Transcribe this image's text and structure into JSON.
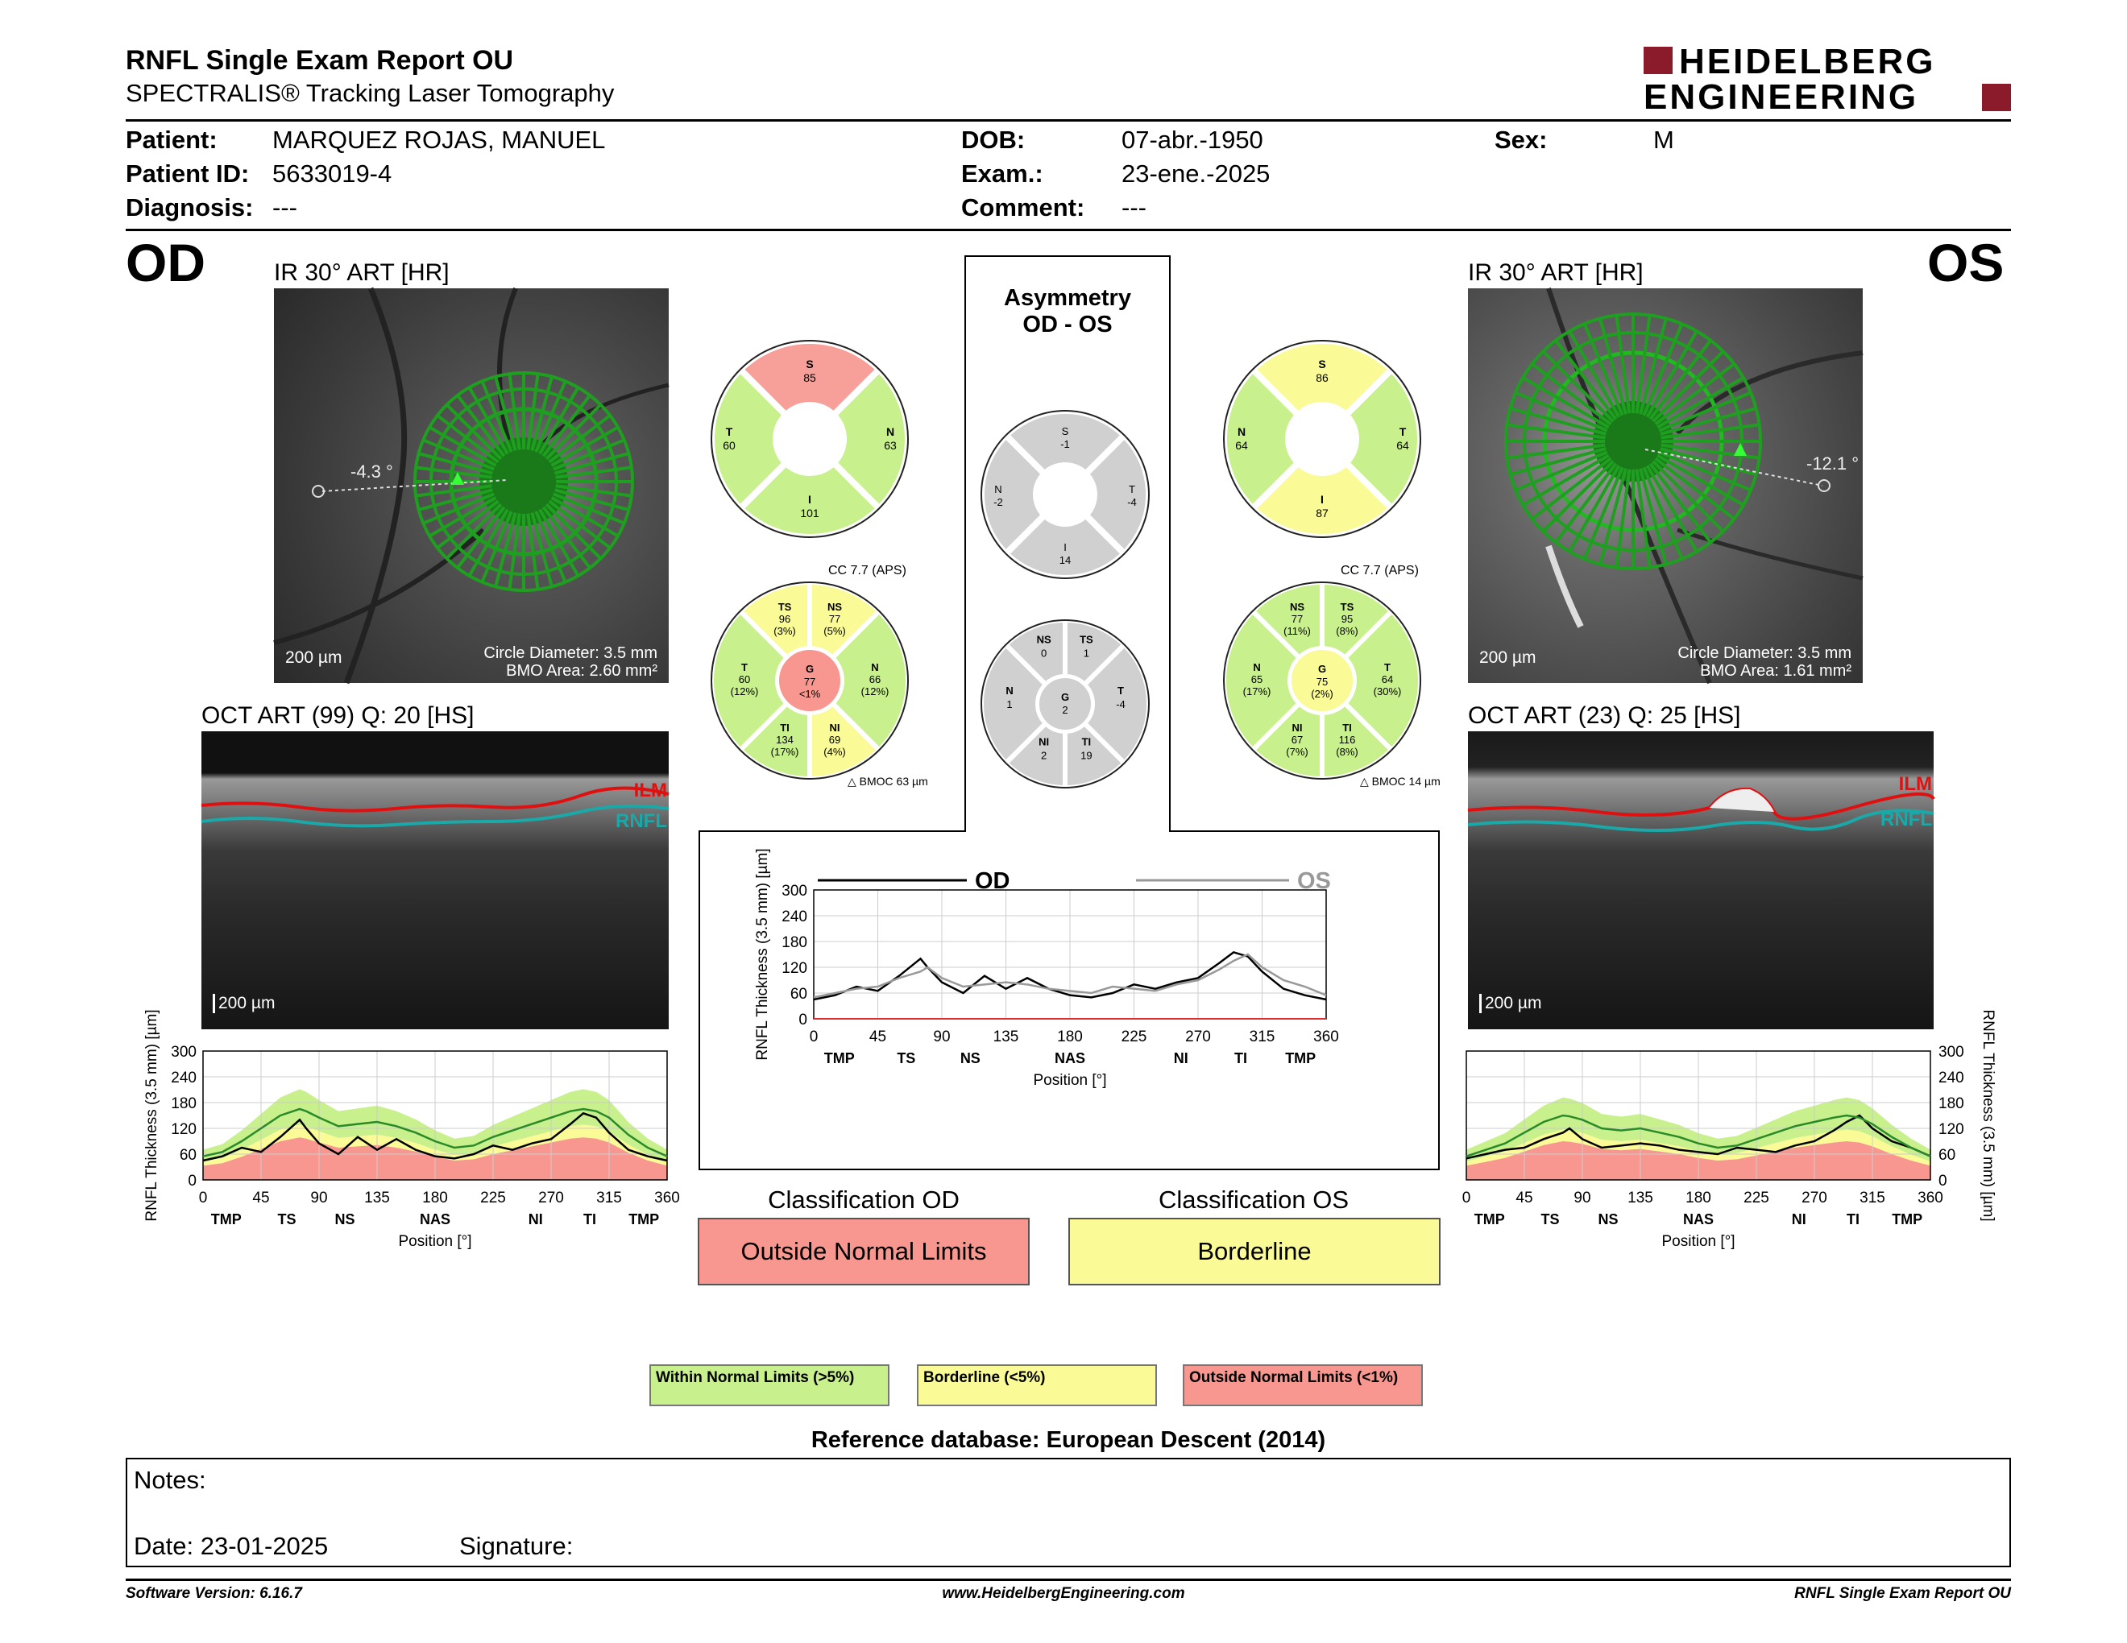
{
  "header": {
    "title": "RNFL Single Exam Report OU",
    "subtitle": "SPECTRALIS® Tracking Laser Tomography",
    "logo_line1": "HEIDELBERG",
    "logo_line2": "ENGINEERING"
  },
  "patient": {
    "patient_label": "Patient:",
    "patient_value": "MARQUEZ ROJAS, MANUEL",
    "id_label": "Patient ID:",
    "id_value": "5633019-4",
    "diag_label": "Diagnosis:",
    "diag_value": "---",
    "dob_label": "DOB:",
    "dob_value": "07-abr.-1950",
    "exam_label": "Exam.:",
    "exam_value": "23-ene.-2025",
    "comment_label": "Comment:",
    "comment_value": "---",
    "sex_label": "Sex:",
    "sex_value": "M"
  },
  "od": {
    "eye": "OD",
    "ir_title": "IR 30° ART [HR]",
    "angle": "-4.3 °",
    "scale": "200 µm",
    "circle": "Circle Diameter: 3.5 mm",
    "bmo": "BMO Area: 2.60 mm²",
    "oct_title": "OCT ART (99) Q: 20 [HS]",
    "oct_scale": "200 µm",
    "ilm": "ILM",
    "rnfl": "RNFL",
    "quad": {
      "S": "85",
      "T": "60",
      "N": "63",
      "I": "101"
    },
    "quad_colors": {
      "S": "#f7a09a",
      "T": "#c8f08c",
      "N": "#c8f08c",
      "I": "#c8f08c"
    },
    "cc": "CC 7.7 (APS)",
    "bmoc": "BMOC 63 µm",
    "sectors": {
      "TS": [
        "96",
        "(3%)"
      ],
      "NS": [
        "77",
        "(5%)"
      ],
      "T": [
        "60",
        "(12%)"
      ],
      "G": [
        "77",
        "<1%"
      ],
      "N": [
        "66",
        "(12%)"
      ],
      "TI": [
        "134",
        "(17%)"
      ],
      "NI": [
        "69",
        "(4%)"
      ]
    }
  },
  "os": {
    "eye": "OS",
    "ir_title": "IR 30° ART [HR]",
    "angle": "-12.1 °",
    "scale": "200 µm",
    "circle": "Circle Diameter: 3.5 mm",
    "bmo": "BMO Area: 1.61 mm²",
    "oct_title": "OCT ART (23) Q: 25 [HS]",
    "oct_scale": "200 µm",
    "ilm": "ILM",
    "rnfl": "RNFL",
    "quad": {
      "S": "86",
      "N": "64",
      "T": "64",
      "I": "87"
    },
    "cc": "CC 7.7 (APS)",
    "bmoc": "BMOC 14 µm",
    "sectors": {
      "NS": [
        "77",
        "(11%)"
      ],
      "TS": [
        "95",
        "(8%)"
      ],
      "N": [
        "65",
        "(17%)"
      ],
      "G": [
        "75",
        "(2%)"
      ],
      "T": [
        "64",
        "(30%)"
      ],
      "NI": [
        "67",
        "(7%)"
      ],
      "TI": [
        "116",
        "(8%)"
      ]
    }
  },
  "asym": {
    "title1": "Asymmetry",
    "title2": "OD - OS",
    "quad": {
      "S": "-1",
      "N": "-2",
      "T": "-4",
      "I": "14"
    },
    "sectors": {
      "NS": "0",
      "TS": "1",
      "N": "1",
      "G": "2",
      "T": "-4",
      "NI": "2",
      "TI": "19"
    }
  },
  "classification": {
    "od_title": "Classification OD",
    "od_value": "Outside Normal Limits",
    "os_title": "Classification OS",
    "os_value": "Borderline"
  },
  "legend": {
    "wnl": "Within Normal Limits (>5%)",
    "bl": "Borderline (<5%)",
    "onl": "Outside Normal Limits (<1%)",
    "colors": {
      "green": "#c8f08c",
      "yellow": "#fafa96",
      "red": "#f7978f"
    }
  },
  "reference": "Reference database: European Descent (2014)",
  "notes": {
    "notes_label": "Notes:",
    "date_label": "Date: 23-01-2025",
    "signature_label": "Signature:"
  },
  "footer": {
    "left": "Software Version: 6.16.7",
    "center": "www.HeidelbergEngineering.com",
    "right": "RNFL Single Exam Report OU"
  },
  "chart_data": [
    {
      "type": "line",
      "name": "OD RNFL thickness profile",
      "xlabel": "Position [°]",
      "ylabel": "RNFL Thickness (3.5 mm) [µm]",
      "xlim": [
        0,
        360
      ],
      "ylim": [
        0,
        300
      ],
      "xticks": [
        0,
        45,
        90,
        135,
        180,
        225,
        270,
        315,
        360
      ],
      "yticks": [
        0,
        60,
        120,
        180,
        240,
        300
      ],
      "region_labels": [
        "TMP",
        "TS",
        "NS",
        "NAS",
        "NI",
        "TI",
        "TMP"
      ],
      "x": [
        0,
        15,
        30,
        45,
        60,
        75,
        80,
        90,
        105,
        120,
        135,
        150,
        165,
        180,
        195,
        210,
        225,
        240,
        255,
        270,
        285,
        295,
        305,
        315,
        330,
        345,
        360
      ],
      "series": [
        {
          "values": [
            45,
            55,
            75,
            65,
            100,
            140,
            120,
            85,
            60,
            100,
            70,
            95,
            70,
            55,
            50,
            60,
            80,
            70,
            85,
            95,
            130,
            155,
            145,
            110,
            70,
            55,
            45
          ]
        },
        {
          "values": [
            55,
            65,
            90,
            120,
            150,
            165,
            160,
            145,
            125,
            130,
            135,
            125,
            110,
            90,
            75,
            80,
            100,
            115,
            130,
            145,
            160,
            165,
            160,
            145,
            105,
            75,
            55
          ]
        }
      ]
    },
    {
      "type": "line",
      "name": "OD - OS comparison",
      "xlabel": "Position [°]",
      "ylabel": "RNFL Thickness (3.5 mm) [µm]",
      "xlim": [
        0,
        360
      ],
      "ylim": [
        0,
        300
      ],
      "xticks": [
        0,
        45,
        90,
        135,
        180,
        225,
        270,
        315,
        360
      ],
      "yticks": [
        0,
        60,
        120,
        180,
        240,
        300
      ],
      "region_labels": [
        "TMP",
        "TS",
        "NS",
        "NAS",
        "NI",
        "TI",
        "TMP"
      ],
      "x": [
        0,
        15,
        30,
        45,
        60,
        75,
        80,
        90,
        105,
        120,
        135,
        150,
        165,
        180,
        195,
        210,
        225,
        240,
        255,
        270,
        285,
        295,
        305,
        315,
        330,
        345,
        360
      ],
      "series": [
        {
          "name": "OD",
          "values": [
            45,
            55,
            75,
            65,
            100,
            140,
            120,
            85,
            60,
            100,
            70,
            95,
            70,
            55,
            50,
            60,
            80,
            70,
            85,
            95,
            130,
            155,
            145,
            110,
            70,
            55,
            45
          ]
        },
        {
          "name": "OS",
          "values": [
            50,
            60,
            70,
            75,
            95,
            110,
            120,
            95,
            75,
            80,
            85,
            80,
            70,
            65,
            60,
            75,
            70,
            65,
            80,
            90,
            115,
            135,
            150,
            120,
            90,
            75,
            55
          ]
        }
      ]
    },
    {
      "type": "line",
      "name": "OS RNFL thickness profile",
      "xlabel": "Position [°]",
      "ylabel": "RNFL Thickness (3.5 mm) [µm]",
      "xlim": [
        0,
        360
      ],
      "ylim": [
        0,
        300
      ],
      "xticks": [
        0,
        45,
        90,
        135,
        180,
        225,
        270,
        315,
        360
      ],
      "yticks": [
        0,
        60,
        120,
        180,
        240,
        300
      ],
      "region_labels": [
        "TMP",
        "TS",
        "NS",
        "NAS",
        "NI",
        "TI",
        "TMP"
      ],
      "x": [
        0,
        15,
        30,
        45,
        60,
        75,
        80,
        90,
        105,
        120,
        135,
        150,
        165,
        180,
        195,
        210,
        225,
        240,
        255,
        270,
        285,
        295,
        305,
        315,
        330,
        345,
        360
      ],
      "series": [
        {
          "values": [
            50,
            60,
            70,
            75,
            95,
            110,
            120,
            95,
            75,
            80,
            85,
            80,
            70,
            65,
            60,
            75,
            70,
            65,
            80,
            90,
            115,
            135,
            150,
            120,
            90,
            75,
            55
          ]
        },
        {
          "values": [
            55,
            70,
            85,
            110,
            135,
            150,
            148,
            140,
            120,
            115,
            120,
            110,
            100,
            85,
            75,
            80,
            95,
            110,
            125,
            135,
            145,
            150,
            145,
            130,
            100,
            75,
            55
          ]
        }
      ]
    }
  ]
}
